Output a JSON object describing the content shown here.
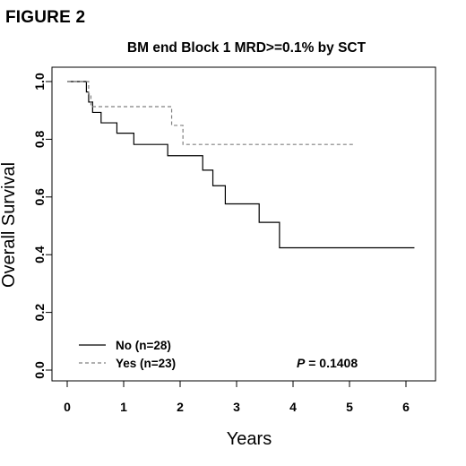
{
  "figure_label": "FIGURE 2",
  "chart_data": {
    "type": "line",
    "title": "BM end Block 1 MRD>=0.1% by SCT",
    "xlabel": "Years",
    "ylabel": "Overall Survival",
    "xlim": [
      0,
      6.2
    ],
    "ylim": [
      0,
      1.0
    ],
    "xticks": [
      0,
      1,
      2,
      3,
      4,
      5,
      6
    ],
    "yticks": [
      0.0,
      0.2,
      0.4,
      0.6,
      0.8,
      1.0
    ],
    "xtick_labels": [
      "0",
      "1",
      "2",
      "3",
      "4",
      "5",
      "6"
    ],
    "ytick_labels": [
      "0.0",
      "0.2",
      "0.4",
      "0.6",
      "0.8",
      "1.0"
    ],
    "step": true,
    "grid": false,
    "legend_position": "bottom-left",
    "annotation": {
      "label": "P",
      "value": " = 0.1408"
    },
    "series": [
      {
        "name": "No (n=28)",
        "style": "solid",
        "color": "#000000",
        "x": [
          0,
          0.34,
          0.38,
          0.45,
          0.6,
          0.88,
          1.18,
          1.78,
          2.4,
          2.58,
          2.8,
          3.4,
          3.76,
          6.15
        ],
        "y": [
          1.0,
          0.964,
          0.929,
          0.893,
          0.857,
          0.821,
          0.782,
          0.743,
          0.693,
          0.639,
          0.576,
          0.512,
          0.424,
          0.424
        ]
      },
      {
        "name": "Yes (n=23)",
        "style": "dashed",
        "color": "#808080",
        "x": [
          0,
          0.38,
          0.42,
          1.85,
          2.05,
          5.1
        ],
        "y": [
          1.0,
          0.957,
          0.913,
          0.848,
          0.782,
          0.782
        ]
      }
    ]
  }
}
